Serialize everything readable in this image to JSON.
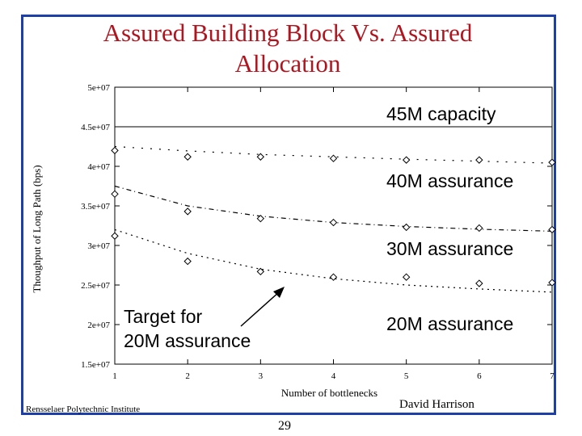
{
  "slide": {
    "title_line1": "Assured Building Block Vs. Assured",
    "title_line2": "Allocation",
    "footer_left": "Rensselaer Polytechnic Institute",
    "footer_right": "David Harrison",
    "page_number": "29"
  },
  "colors": {
    "title": "#b0141e",
    "frame": "#1f3fa8"
  },
  "chart_data": {
    "type": "scatter",
    "xlabel": "Number of bottlenecks",
    "ylabel": "Thoughput of Long Path (bps)",
    "xlim": [
      1,
      7
    ],
    "ylim": [
      15000000,
      50000000
    ],
    "x_ticks": [
      1,
      2,
      3,
      4,
      5,
      6,
      7
    ],
    "y_ticks": [
      {
        "value": 15000000,
        "label": "1.5e+07"
      },
      {
        "value": 20000000,
        "label": "2e+07"
      },
      {
        "value": 25000000,
        "label": "2.5e+07"
      },
      {
        "value": 30000000,
        "label": "3e+07"
      },
      {
        "value": 35000000,
        "label": "3.5e+07"
      },
      {
        "value": 40000000,
        "label": "4e+07"
      },
      {
        "value": 45000000,
        "label": "4.5e+07"
      },
      {
        "value": 50000000,
        "label": "5e+07"
      }
    ],
    "reference_lines": [
      {
        "label": "45M capacity",
        "value": 45000000
      }
    ],
    "x": [
      1,
      2,
      3,
      4,
      5,
      6,
      7
    ],
    "series": [
      {
        "name": "40M assurance",
        "values": [
          42000000,
          41200000,
          41200000,
          41000000,
          40800000,
          40800000,
          40500000
        ],
        "fit": [
          42500000,
          41950000,
          41500000,
          41200000,
          40900000,
          40650000,
          40400000
        ]
      },
      {
        "name": "30M assurance",
        "values": [
          36500000,
          34300000,
          33400000,
          32900000,
          32300000,
          32200000,
          32000000
        ],
        "fit": [
          37500000,
          35000000,
          33700000,
          32900000,
          32400000,
          32050000,
          31800000
        ]
      },
      {
        "name": "20M assurance",
        "values": [
          31200000,
          28000000,
          26700000,
          26000000,
          26000000,
          25200000,
          25300000
        ],
        "fit": [
          32000000,
          29000000,
          27000000,
          25800000,
          25000000,
          24500000,
          24100000
        ]
      }
    ],
    "annotations": [
      {
        "lines": [
          "Target for",
          "20M assurance"
        ]
      }
    ]
  }
}
